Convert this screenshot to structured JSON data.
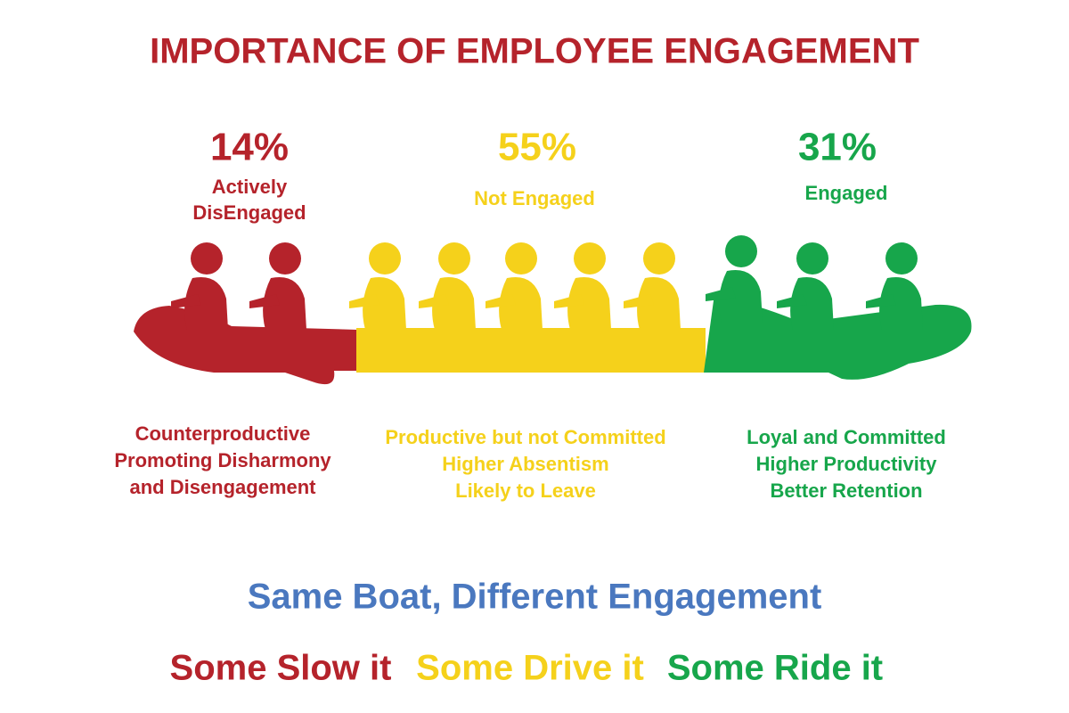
{
  "title": "IMPORTANCE OF EMPLOYEE ENGAGEMENT",
  "groups": [
    {
      "percent": "14%",
      "label": [
        "Actively",
        "DisEngaged"
      ],
      "lines": [
        "Counterproductive",
        "Promoting Disharmony",
        "and Disengagement"
      ]
    },
    {
      "percent": "55%",
      "label": [
        "Not Engaged"
      ],
      "lines": [
        "Productive but not Committed",
        "Higher Absentism",
        "Likely to Leave"
      ]
    },
    {
      "percent": "31%",
      "label": [
        "Engaged"
      ],
      "lines": [
        "Loyal and Committed",
        "Higher Productivity",
        "Better Retention"
      ]
    }
  ],
  "tagline": "Same Boat, Different Engagement",
  "slogans": [
    "Some Slow it",
    "Some Drive it",
    "Some Ride it"
  ]
}
